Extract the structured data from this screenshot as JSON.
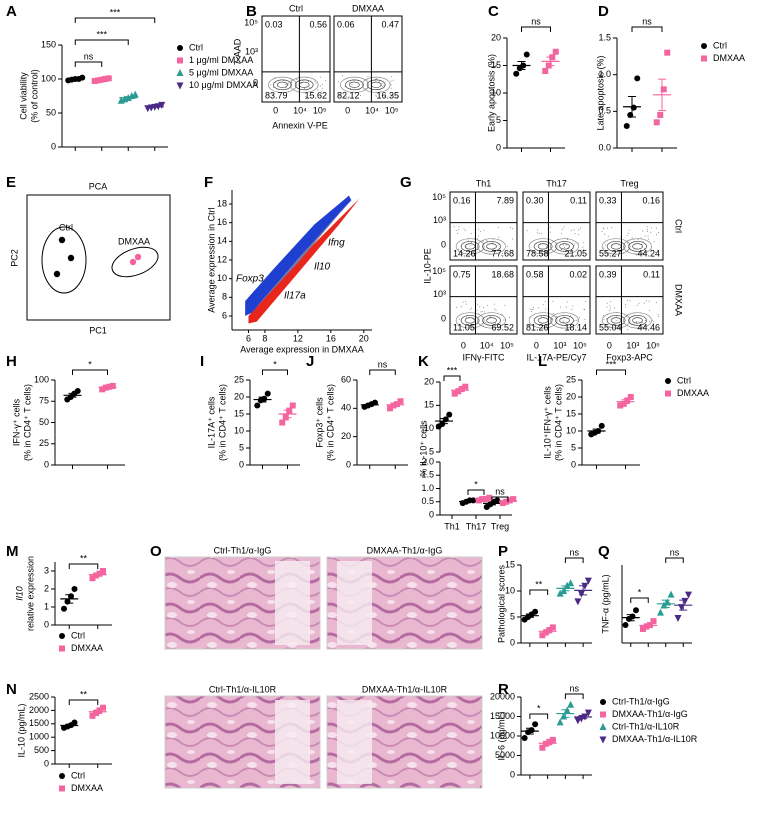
{
  "chart_data": [
    {
      "type": "dot",
      "label": "A",
      "ylabel": [
        "Cell viability",
        "(% of control)"
      ],
      "ylim": [
        0,
        150
      ],
      "yticks": [
        0,
        50,
        100,
        150
      ],
      "legend": "right",
      "series": [
        {
          "name": "Ctrl",
          "color": "#000000",
          "marker": "circle",
          "values": [
            98,
            99,
            100,
            100,
            102
          ]
        },
        {
          "name": "1 μg/ml DMXAA",
          "color": "#f4649e",
          "marker": "square",
          "values": [
            97,
            98,
            99,
            100,
            101
          ]
        },
        {
          "name": "5 μg/ml DMXAA",
          "color": "#2b9c94",
          "marker": "triangle",
          "values": [
            68,
            70,
            72,
            75,
            77
          ]
        },
        {
          "name": "10 μg/ml DMXAA",
          "color": "#4b2a85",
          "marker": "down",
          "values": [
            57,
            58,
            59,
            60,
            62
          ]
        }
      ],
      "annotations": [
        "ns",
        "***",
        "***"
      ]
    },
    {
      "type": "flow",
      "label": "B",
      "columns": [
        "Ctrl",
        "DMXAA"
      ],
      "xlabel": [
        "Annexin V-PE"
      ],
      "ylabel": "7-AAD",
      "xticks": [
        [
          "0",
          "10⁴",
          "10⁵"
        ]
      ],
      "yticks": [
        "10⁵",
        "10³",
        "0"
      ],
      "quadrants": [
        [
          [
            "0.03",
            "0.56",
            "83.79",
            "15.62"
          ],
          [
            "0.06",
            "0.47",
            "82.12",
            "16.35"
          ]
        ]
      ]
    },
    {
      "type": "dot",
      "label": "C",
      "ylabel": [
        "Early apoptosis (%)"
      ],
      "ylim": [
        0,
        20
      ],
      "yticks": [
        0,
        5,
        10,
        15,
        20
      ],
      "series": [
        {
          "color": "#000000",
          "marker": "circle",
          "values": [
            13.5,
            14.5,
            15,
            17
          ]
        },
        {
          "color": "#f4649e",
          "marker": "square",
          "values": [
            14,
            15,
            16.5,
            17.5
          ]
        }
      ],
      "annotations": [
        "ns"
      ]
    },
    {
      "type": "dot",
      "label": "D",
      "ylabel": [
        "Late apoptosis (%)"
      ],
      "ylim": [
        0,
        1.5
      ],
      "yticks": [
        {
          "value": 0,
          "label": "0.0"
        },
        0.5,
        {
          "value": 1,
          "label": "1.0"
        },
        1.5
      ],
      "legend": "right",
      "series": [
        {
          "name": "Ctrl",
          "color": "#000000",
          "marker": "circle",
          "values": [
            0.3,
            0.45,
            0.55,
            0.95
          ]
        },
        {
          "name": "DMXAA",
          "color": "#f4649e",
          "marker": "square",
          "values": [
            0.35,
            0.45,
            0.8,
            1.3
          ]
        }
      ],
      "annotations": [
        "ns"
      ]
    },
    {
      "type": "pca",
      "label": "E",
      "title": "PCA",
      "xlabel": "PC1",
      "ylabel": "PC2",
      "groups": [
        "Ctrl",
        "DMXAA"
      ]
    },
    {
      "type": "density",
      "label": "F",
      "xlabel": "Average expression in DMXAA",
      "ylabel": "Average expression in Ctrl",
      "xlim": [
        4,
        21
      ],
      "ylim": [
        4.5,
        19.5
      ],
      "xticks": [
        6,
        8,
        12,
        16,
        20
      ],
      "yticks": [
        6,
        8,
        10,
        12,
        14,
        16,
        18
      ],
      "annotations": [
        "Ifng",
        "Il10",
        "Il17a",
        "Foxp3"
      ]
    },
    {
      "type": "flow",
      "label": "G",
      "columns": [
        "Th1",
        "Th17",
        "Treg"
      ],
      "rows": [
        "Ctrl",
        "DMXAA"
      ],
      "xlabel": [
        "IFNγ-FITC",
        "IL-17A-PE/Cy7",
        "Foxp3-APC"
      ],
      "ylabel": "IL-10-PE",
      "xticks": [
        [
          "0",
          "10⁴",
          "10⁵"
        ],
        [
          "0",
          "10³",
          "10⁵"
        ],
        [
          "0",
          "10³",
          "10⁵"
        ]
      ],
      "yticks": [
        "10⁵",
        "10³",
        "0"
      ],
      "quadrants": [
        [
          [
            "0.16",
            "7.89",
            "14.26",
            "77.68"
          ],
          [
            "0.30",
            "0.11",
            "78.58",
            "21.05"
          ],
          [
            "0.33",
            "0.16",
            "55.27",
            "44.24"
          ]
        ],
        [
          [
            "0.75",
            "18.68",
            "11.05",
            "69.52"
          ],
          [
            "0.58",
            "0.02",
            "81.26",
            "18.14"
          ],
          [
            "0.39",
            "0.11",
            "55.04",
            "44.46"
          ]
        ]
      ]
    },
    {
      "type": "dot",
      "label": "H",
      "ylabel": [
        "IFN-γ⁺ cells",
        "(% in CD4⁺ T cells)"
      ],
      "ylim": [
        0,
        100
      ],
      "yticks": [
        0,
        25,
        50,
        75,
        100
      ],
      "series": [
        {
          "color": "#000000",
          "marker": "circle",
          "values": [
            77,
            80,
            84,
            87
          ]
        },
        {
          "color": "#f4649e",
          "marker": "square",
          "values": [
            89,
            91,
            92,
            93
          ]
        }
      ],
      "annotations": [
        "*"
      ]
    },
    {
      "type": "dot",
      "label": "I",
      "ylabel": [
        "IL-17A⁺ cells",
        "(% in CD4⁺ T cells)"
      ],
      "ylim": [
        0,
        25
      ],
      "yticks": [
        0,
        5,
        10,
        15,
        20,
        25
      ],
      "series": [
        {
          "color": "#000000",
          "marker": "circle",
          "values": [
            17.5,
            19,
            19.5,
            21
          ]
        },
        {
          "color": "#f4649e",
          "marker": "square",
          "values": [
            12.5,
            14,
            16,
            17.5
          ]
        }
      ],
      "annotations": [
        "*"
      ]
    },
    {
      "type": "dot",
      "label": "J",
      "ylabel": [
        "Foxp3⁺ cells",
        "(% in CD4⁺ T cells)"
      ],
      "ylim": [
        0,
        60
      ],
      "yticks": [
        0,
        20,
        40,
        60
      ],
      "series": [
        {
          "color": "#000000",
          "marker": "circle",
          "values": [
            41,
            42,
            43,
            44
          ]
        },
        {
          "color": "#f4649e",
          "marker": "square",
          "values": [
            40,
            42,
            43,
            45
          ]
        }
      ],
      "annotations": [
        "ns"
      ]
    },
    {
      "type": "dot",
      "label": "K",
      "ylabel": [
        "% IL-10⁺ cells"
      ],
      "ylim": [
        0,
        20
      ],
      "ybreak": [
        2,
        5
      ],
      "yticks": [
        0,
        0.5,
        {
          "value": 1,
          "label": "1.0"
        },
        1.5,
        {
          "value": 2,
          "label": "2.0"
        },
        5,
        10,
        15,
        20
      ],
      "categories": [
        "Th1",
        "Th17",
        "Treg"
      ],
      "series": [
        {
          "color": "#000000",
          "marker": "circle",
          "values": [
            [
              10.5,
              11,
              12,
              13
            ],
            [
              0.45,
              0.5,
              0.55,
              0.55
            ],
            [
              0.3,
              0.4,
              0.5,
              0.55
            ]
          ]
        },
        {
          "color": "#f4649e",
          "marker": "square",
          "values": [
            [
              17.5,
              18,
              18.5,
              19
            ],
            [
              0.55,
              0.6,
              0.6,
              0.65
            ],
            [
              0.45,
              0.5,
              0.55,
              0.6
            ]
          ]
        }
      ],
      "annotations": [
        "***",
        "*",
        "ns"
      ]
    },
    {
      "type": "dot",
      "label": "L",
      "ylabel": [
        "IL-10⁺IFN-γ⁺ cells",
        "(% in CD4⁺ T cells)"
      ],
      "ylim": [
        0,
        25
      ],
      "yticks": [
        0,
        5,
        10,
        15,
        20,
        25
      ],
      "legend": "right",
      "series": [
        {
          "name": "Ctrl",
          "color": "#000000",
          "marker": "circle",
          "values": [
            9,
            9.5,
            10,
            11.5
          ]
        },
        {
          "name": "DMXAA",
          "color": "#f4649e",
          "marker": "square",
          "values": [
            17.5,
            18,
            19,
            20
          ]
        }
      ],
      "annotations": [
        "***"
      ]
    },
    {
      "type": "dot",
      "label": "M",
      "ylabel": [
        "Il10",
        "relative expression"
      ],
      "ylim": [
        0,
        3.5
      ],
      "yticks": [
        0,
        1,
        2,
        3
      ],
      "legend": "inside",
      "series": [
        {
          "name": "Ctrl",
          "color": "#000000",
          "marker": "circle",
          "values": [
            0.9,
            1.3,
            1.6,
            2.0
          ]
        },
        {
          "name": "DMXAA",
          "color": "#f4649e",
          "marker": "square",
          "values": [
            2.6,
            2.75,
            2.85,
            3.0
          ]
        }
      ],
      "annotations": [
        "**"
      ]
    },
    {
      "type": "dot",
      "label": "N",
      "ylabel": [
        "IL-10 (pg/mL)"
      ],
      "ylim": [
        0,
        2500
      ],
      "yticks": [
        0,
        500,
        1000,
        1500,
        2000,
        2500
      ],
      "legend": "inside",
      "series": [
        {
          "name": "Ctrl",
          "color": "#000000",
          "marker": "circle",
          "values": [
            1350,
            1400,
            1450,
            1550
          ]
        },
        {
          "name": "DMXAA",
          "color": "#f4649e",
          "marker": "square",
          "values": [
            1800,
            1900,
            2000,
            2100
          ]
        }
      ],
      "annotations": [
        "**"
      ]
    },
    {
      "type": "images",
      "label": "O",
      "titles": [
        "Ctrl-Th1/α-IgG",
        "DMXAA-Th1/α-IgG",
        "Ctrl-Th1/α-IL10R",
        "DMXAA-Th1/α-IL10R"
      ]
    },
    {
      "type": "dot",
      "label": "P",
      "ylabel": [
        "Pathological scores"
      ],
      "ylim": [
        0,
        15
      ],
      "yticks": [
        0,
        5,
        10,
        15
      ],
      "series": [
        {
          "color": "#000000",
          "marker": "circle",
          "values": [
            4.5,
            5,
            5.5,
            6
          ]
        },
        {
          "color": "#f4649e",
          "marker": "square",
          "values": [
            1.5,
            2,
            2.5,
            3
          ]
        },
        {
          "color": "#2b9c94",
          "marker": "triangle",
          "values": [
            9.5,
            10,
            11,
            11.5
          ]
        },
        {
          "color": "#4b2a85",
          "marker": "down",
          "values": [
            8,
            9.5,
            11,
            12
          ]
        }
      ],
      "annotations": [
        "**",
        "ns"
      ]
    },
    {
      "type": "dot",
      "label": "Q",
      "ylabel": [
        "TNF-α (pg/mL)"
      ],
      "ylim": [
        0,
        100
      ],
      "series": [
        {
          "color": "#000000",
          "marker": "circle",
          "values": [
            23,
            31,
            34,
            42
          ]
        },
        {
          "color": "#f4649e",
          "marker": "square",
          "values": [
            18,
            21,
            23,
            28
          ]
        },
        {
          "color": "#2b9c94",
          "marker": "triangle",
          "values": [
            39,
            48,
            52,
            62
          ]
        },
        {
          "color": "#4b2a85",
          "marker": "down",
          "values": [
            32,
            46,
            54,
            62
          ]
        }
      ],
      "annotations": [
        "*",
        "ns"
      ]
    },
    {
      "type": "dot",
      "label": "R",
      "ylabel": [
        "IL-6 (pg/mL)"
      ],
      "ylim": [
        0,
        20000
      ],
      "yticks": [
        0,
        5000,
        10000,
        15000,
        20000
      ],
      "legend": "right",
      "series": [
        {
          "name": "Ctrl-Th1/α-IgG",
          "color": "#000000",
          "marker": "circle",
          "values": [
            9500,
            11000,
            11500,
            13000
          ]
        },
        {
          "name": "DMXAA-Th1/α-IgG",
          "color": "#f4649e",
          "marker": "square",
          "values": [
            7000,
            8000,
            8500,
            9000
          ]
        },
        {
          "name": "Ctrl-Th1/α-IL10R",
          "color": "#2b9c94",
          "marker": "triangle",
          "values": [
            13500,
            15000,
            16500,
            18000
          ]
        },
        {
          "name": "DMXAA-Th1/α-IL10R",
          "color": "#4b2a85",
          "marker": "down",
          "values": [
            14000,
            14500,
            15000,
            16000
          ]
        }
      ],
      "annotations": [
        "*",
        "ns"
      ]
    }
  ]
}
